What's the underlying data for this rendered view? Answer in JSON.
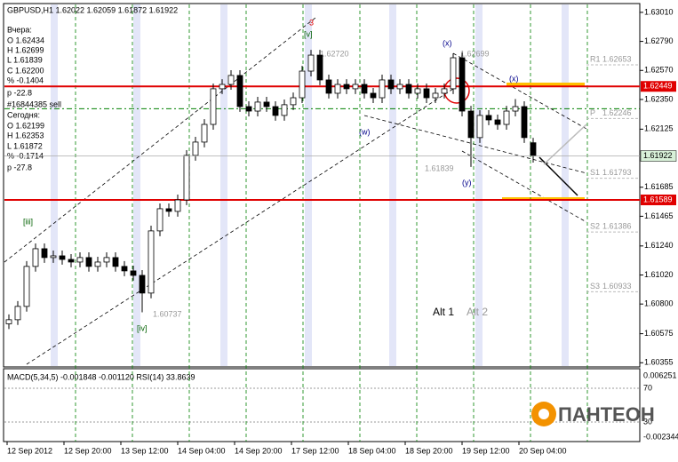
{
  "chart_data": {
    "type": "candlestick",
    "header": "GBPUSD,H1 1.62022 1.62059 1.61872 1.61922",
    "info_lines": [
      "Вчера:",
      "O 1.62434",
      "H 1.62699",
      "L 1.61839",
      "C 1.62200",
      "% -0.1404",
      "p -22.8",
      "#16844385 sell",
      "Сегодня:",
      "O 1.62199",
      "H 1.62353",
      "L 1.61872",
      "% -0.1714",
      "p -27.8"
    ],
    "ylim": [
      1.6033,
      1.6307
    ],
    "yticks": [
      {
        "value": 1.6301,
        "label": "1.63010"
      },
      {
        "value": 1.6279,
        "label": "1.62790"
      },
      {
        "value": 1.6257,
        "label": "1.62570"
      },
      {
        "value": 1.6235,
        "label": "1.62350"
      },
      1.62125,
      1.61685,
      1.61465,
      {
        "value": 1.6124,
        "label": "1.61240"
      },
      {
        "value": 1.6102,
        "label": "1.61020"
      },
      {
        "value": 1.608,
        "label": "1.60800"
      },
      1.60575,
      1.60355
    ],
    "time_labels": [
      "12 Sep 2012",
      "12 Sep 20:00",
      "13 Sep 12:00",
      "14 Sep 04:00",
      "14 Sep 20:00",
      "17 Sep 12:00",
      "18 Sep 04:00",
      "18 Sep 20:00",
      "19 Sep 12:00",
      "20 Sep 04:00"
    ],
    "open": [
      1.6065,
      1.60681,
      1.60782,
      1.61085,
      1.61219,
      1.61152,
      1.61165,
      1.61138,
      1.61118,
      1.61152,
      1.61085,
      1.61118,
      1.61152,
      1.61085,
      1.61051,
      1.61017,
      1.60883,
      1.61354,
      1.61522,
      1.61502,
      1.61589,
      1.61926,
      1.62027,
      1.62161,
      1.62431,
      1.62464,
      1.62532,
      1.62296,
      1.62262,
      1.6233,
      1.62296,
      1.62229,
      1.6231,
      1.62363,
      1.62565,
      1.62686,
      1.62498,
      1.62397,
      1.62464,
      1.62431,
      1.62464,
      1.62397,
      1.62363,
      1.62498,
      1.62431,
      1.62464,
      1.62397,
      1.62431,
      1.62363,
      1.62397,
      1.62431,
      1.62666,
      1.62262,
      1.62061,
      1.62229,
      1.62195,
      1.62161,
      1.62262,
      1.62296,
      1.62022
    ],
    "high": [
      1.60721,
      1.60822,
      1.61125,
      1.61259,
      1.61259,
      1.61205,
      1.61205,
      1.61178,
      1.61192,
      1.61192,
      1.61158,
      1.61192,
      1.61192,
      1.61125,
      1.61091,
      1.61057,
      1.61394,
      1.61562,
      1.61562,
      1.61629,
      1.61966,
      1.62067,
      1.62201,
      1.62471,
      1.62504,
      1.62572,
      1.62572,
      1.62336,
      1.6237,
      1.6237,
      1.62336,
      1.6235,
      1.62403,
      1.62605,
      1.62726,
      1.62726,
      1.62538,
      1.62504,
      1.62504,
      1.62504,
      1.62504,
      1.62437,
      1.62538,
      1.62538,
      1.62504,
      1.62504,
      1.62471,
      1.62471,
      1.62437,
      1.62471,
      1.62699,
      1.62706,
      1.62302,
      1.62269,
      1.62269,
      1.62235,
      1.62302,
      1.62353,
      1.62336,
      1.62059
    ],
    "low": [
      1.6061,
      1.60641,
      1.60742,
      1.61045,
      1.61112,
      1.61112,
      1.61098,
      1.61078,
      1.61078,
      1.61045,
      1.61045,
      1.61078,
      1.61045,
      1.61011,
      1.60977,
      1.60737,
      1.60843,
      1.61314,
      1.61462,
      1.61462,
      1.61549,
      1.61886,
      1.61987,
      1.62121,
      1.62391,
      1.62424,
      1.62256,
      1.62222,
      1.62222,
      1.62256,
      1.62189,
      1.62189,
      1.6227,
      1.62323,
      1.62525,
      1.62458,
      1.62357,
      1.62357,
      1.62391,
      1.62391,
      1.62357,
      1.62323,
      1.62323,
      1.62391,
      1.62391,
      1.62357,
      1.62357,
      1.62323,
      1.62323,
      1.62357,
      1.62391,
      1.62222,
      1.61839,
      1.62021,
      1.62155,
      1.62121,
      1.62121,
      1.62222,
      1.62021,
      1.61872
    ],
    "close": [
      1.60681,
      1.60782,
      1.61085,
      1.61219,
      1.61152,
      1.61165,
      1.61138,
      1.61118,
      1.61152,
      1.61085,
      1.61118,
      1.61152,
      1.61085,
      1.61051,
      1.61017,
      1.60883,
      1.61354,
      1.61522,
      1.61502,
      1.61589,
      1.61926,
      1.62027,
      1.62161,
      1.62431,
      1.62464,
      1.62532,
      1.62296,
      1.62262,
      1.6233,
      1.62296,
      1.62229,
      1.6231,
      1.62363,
      1.62565,
      1.62686,
      1.62498,
      1.62397,
      1.62464,
      1.62431,
      1.62464,
      1.62397,
      1.62363,
      1.62498,
      1.62431,
      1.62464,
      1.62397,
      1.62431,
      1.62363,
      1.62397,
      1.62431,
      1.62666,
      1.62262,
      1.62061,
      1.62229,
      1.62195,
      1.62161,
      1.62262,
      1.62296,
      1.62061,
      1.61922
    ],
    "levels": [
      1.62449,
      1.61589
    ],
    "level_color": "#e00000",
    "order_level": 1.6228,
    "pivots": [
      {
        "name": "R1",
        "value": 1.62653
      },
      {
        "name": "P",
        "value": 1.62246
      },
      {
        "name": "S1",
        "value": 1.61793
      },
      {
        "name": "S2",
        "value": 1.61386
      },
      {
        "name": "S3",
        "value": 1.60933
      }
    ],
    "annotations": [
      "3",
      "[v]",
      "(x)",
      "(w)",
      "(y)",
      "(x)",
      "[iii]",
      "[iv]",
      "Alt 1",
      "Alt 2",
      "1.62720",
      "1.62699",
      "1.61839",
      "1.60737"
    ],
    "indicator_text": "MACD(5,34,5) -0.001848 -0.001120 RSI(14) 33.8639",
    "indicator_ticks": [
      "0.006251",
      "70",
      "30",
      "-0.002344"
    ],
    "logo": "ПАНТЕОН"
  }
}
